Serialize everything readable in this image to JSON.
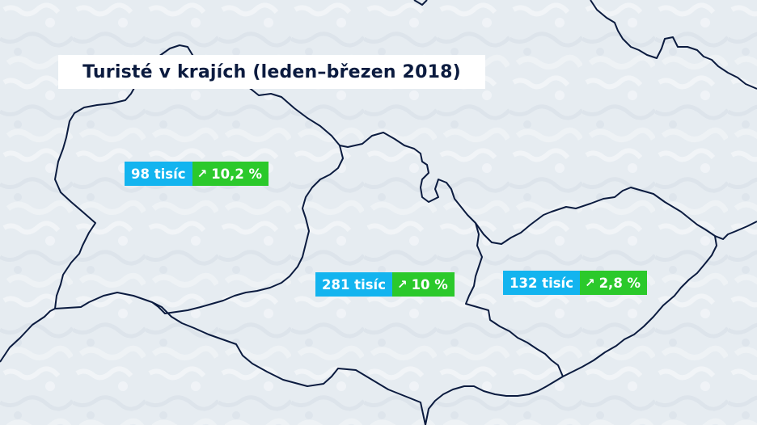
{
  "title": "Turisté v krajích (leden–březen 2018)",
  "colors": {
    "background": "#e9eef2",
    "border": "#0b1b3f",
    "count_box": "#13b4ef",
    "trend_box": "#2bc92b",
    "title_text": "#0b1b3f"
  },
  "regions": [
    {
      "count": "98 tisíc",
      "trend_icon": "↗",
      "trend": "10,2 %",
      "direction": "up"
    },
    {
      "count": "281 tisíc",
      "trend_icon": "↗",
      "trend": "10 %",
      "direction": "up"
    },
    {
      "count": "132 tisíc",
      "trend_icon": "↗",
      "trend": "2,8 %",
      "direction": "up"
    }
  ]
}
